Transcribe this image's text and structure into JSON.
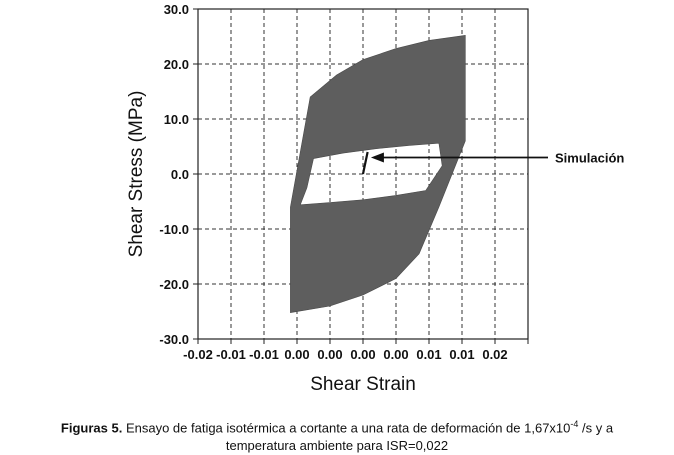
{
  "chart_data": {
    "type": "area",
    "xlabel": "Shear Strain",
    "ylabel": "Shear Stress (MPa)",
    "xlim": [
      -0.025,
      0.025
    ],
    "ylim": [
      -30.0,
      30.0
    ],
    "x_tick_values": [
      -0.025,
      -0.02,
      -0.015,
      -0.01,
      -0.005,
      0.0,
      0.005,
      0.01,
      0.015,
      0.02,
      0.025
    ],
    "x_tick_labels": [
      "-0.02",
      "-0.01",
      "-0.01",
      "0.00",
      "0.00",
      "0.00",
      "0.00",
      "0.01",
      "0.01",
      "0.02",
      ""
    ],
    "y_tick_values": [
      30,
      20,
      10,
      0,
      -10,
      -20,
      -30
    ],
    "y_tick_labels": [
      "30.0",
      "20.0",
      "10.0",
      "0.0",
      "-10.0",
      "-20.0",
      "-30.0"
    ],
    "grid": true,
    "series": [
      {
        "kind": "hysteresis-band",
        "color": "#5e5e5e",
        "outer": [
          [
            -0.011,
            -6.0
          ],
          [
            -0.008,
            14.0
          ],
          [
            -0.004,
            18.0
          ],
          [
            0.0,
            20.8
          ],
          [
            0.005,
            22.8
          ],
          [
            0.01,
            24.3
          ],
          [
            0.0155,
            25.2
          ],
          [
            0.0155,
            6.0
          ],
          [
            0.0115,
            -6.0
          ],
          [
            0.0085,
            -14.5
          ],
          [
            0.005,
            -19.0
          ],
          [
            0.0,
            -22.0
          ],
          [
            -0.005,
            -24.0
          ],
          [
            -0.011,
            -25.2
          ]
        ],
        "inner": [
          [
            -0.0075,
            2.8
          ],
          [
            -0.003,
            3.8
          ],
          [
            0.002,
            4.6
          ],
          [
            0.007,
            5.2
          ],
          [
            0.0115,
            5.6
          ],
          [
            0.012,
            1.5
          ],
          [
            0.0095,
            -3.0
          ],
          [
            0.005,
            -3.9
          ],
          [
            0.0,
            -4.7
          ],
          [
            -0.005,
            -5.2
          ],
          [
            -0.0095,
            -5.6
          ],
          [
            -0.0085,
            -2.5
          ]
        ]
      },
      {
        "name": "Simulación",
        "kind": "line",
        "color": "#111111",
        "x": [
          0.0,
          0.0007
        ],
        "y": [
          0.0,
          4.0
        ]
      }
    ],
    "annotations": [
      {
        "text": "Simulación",
        "arrow_tip": [
          0.0012,
          3.0
        ]
      }
    ]
  },
  "caption": {
    "lead": "Figuras 5.",
    "line1": " Ensayo de fatiga isotérmica a cortante a una rata de deformación de 1,67x10",
    "exponent": "-4",
    "line1_end": " /s y a",
    "line2": "temperatura ambiente para ISR=0,022"
  }
}
